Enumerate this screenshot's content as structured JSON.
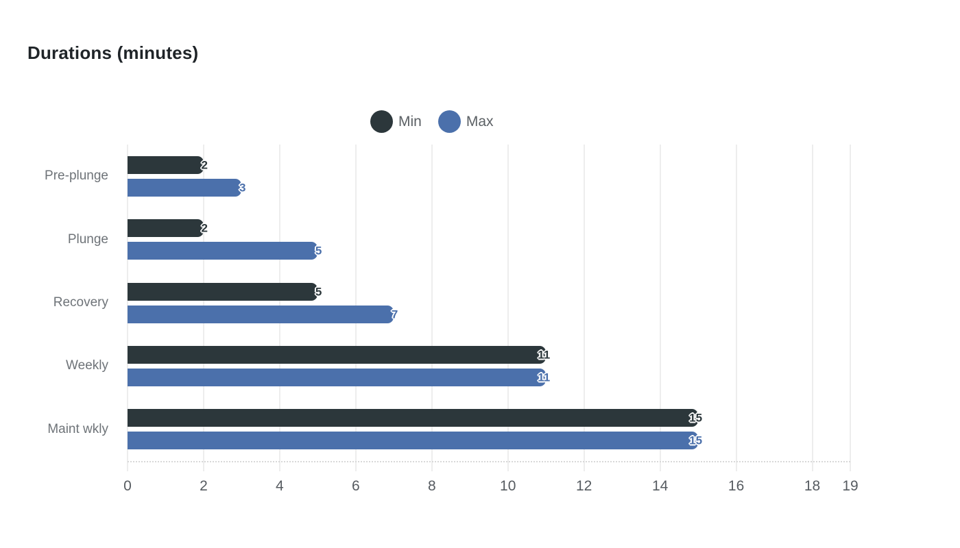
{
  "chart_data": {
    "type": "bar",
    "orientation": "horizontal",
    "title": "Durations (minutes)",
    "categories": [
      "Pre-plunge",
      "Plunge",
      "Recovery",
      "Weekly",
      "Maint wkly"
    ],
    "series": [
      {
        "name": "Min",
        "color": "#2c373b",
        "values": [
          2,
          2,
          5,
          11,
          15
        ]
      },
      {
        "name": "Max",
        "color": "#4b70ab",
        "values": [
          3,
          5,
          7,
          11,
          15
        ]
      }
    ],
    "xticks": [
      0,
      2,
      4,
      6,
      8,
      10,
      12,
      14,
      16,
      18,
      19
    ],
    "xlim": [
      0,
      19
    ],
    "grid": true,
    "legend_position": "top-center",
    "data_labels": "at-bar-end-clipped",
    "colors": {
      "background": "#ffffff",
      "gridline": "#ededed",
      "axis_baseline": "#d8d8d8",
      "title_text": "#1f2428",
      "tick_text": "#565b60",
      "category_text": "#6e7378",
      "legend_text": "#5b6064"
    }
  }
}
